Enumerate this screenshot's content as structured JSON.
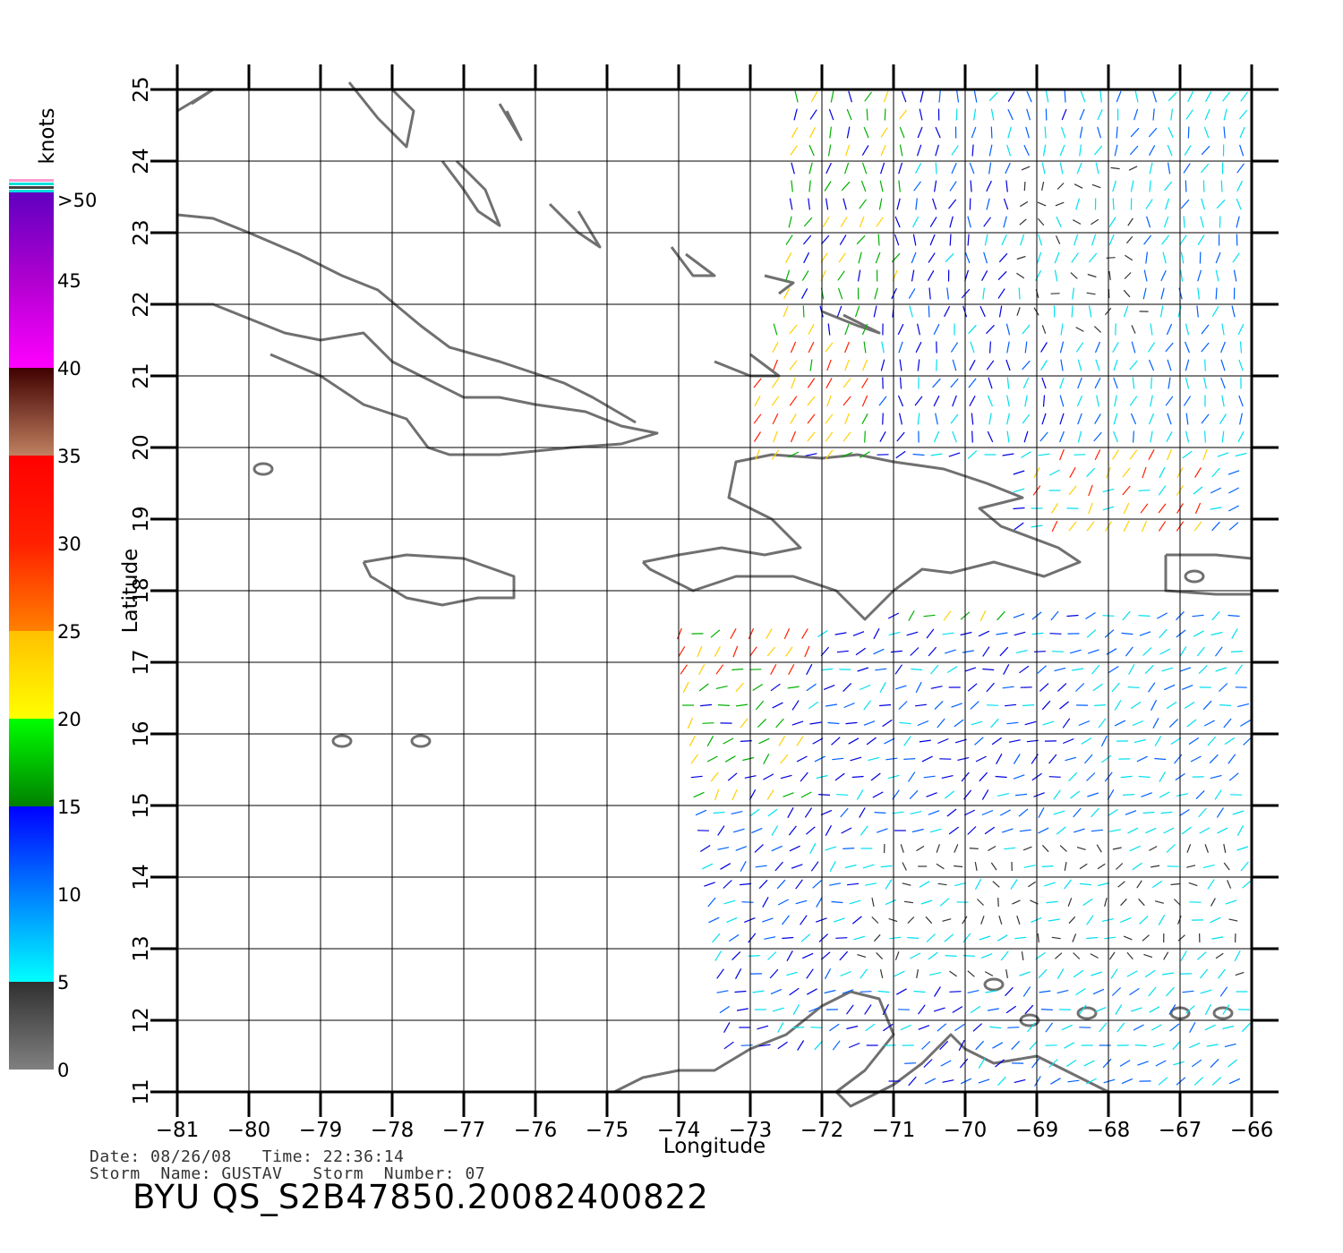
{
  "axes": {
    "xlabel": "Longitude",
    "ylabel": "Latitude",
    "lon_ticks": [
      "−81",
      "−80",
      "−79",
      "−78",
      "−77",
      "−76",
      "−75",
      "−74",
      "−73",
      "−72",
      "−71",
      "−70",
      "−69",
      "−68",
      "−67",
      "−66"
    ],
    "lat_ticks": [
      "11",
      "12",
      "13",
      "14",
      "15",
      "16",
      "17",
      "18",
      "19",
      "20",
      "21",
      "22",
      "23",
      "24",
      "25"
    ],
    "lon_range": [
      -81,
      -66
    ],
    "lat_range": [
      11,
      25
    ]
  },
  "colorbar": {
    "unit_label": "knots",
    "labels": [
      ">50",
      "45",
      "40",
      "35",
      "30",
      "25",
      "20",
      "15",
      "10",
      "5",
      "0"
    ],
    "bands": [
      {
        "from": 0,
        "to": 5,
        "colors": [
          "#808080",
          "#303030"
        ]
      },
      {
        "from": 5,
        "to": 10,
        "colors": [
          "#00ffff",
          "#0080ff"
        ]
      },
      {
        "from": 10,
        "to": 15,
        "colors": [
          "#0080ff",
          "#0000ff"
        ]
      },
      {
        "from": 15,
        "to": 20,
        "colors": [
          "#008000",
          "#00ff00"
        ]
      },
      {
        "from": 20,
        "to": 25,
        "colors": [
          "#ffff00",
          "#ffc000"
        ]
      },
      {
        "from": 25,
        "to": 30,
        "colors": [
          "#ff8000",
          "#ff2000"
        ]
      },
      {
        "from": 30,
        "to": 35,
        "colors": [
          "#ff2000",
          "#ff0000"
        ]
      },
      {
        "from": 35,
        "to": 40,
        "colors": [
          "#c08060",
          "#400000"
        ]
      },
      {
        "from": 40,
        "to": 45,
        "colors": [
          "#ff00ff",
          "#b000d0"
        ]
      },
      {
        "from": 45,
        "to": 50,
        "colors": [
          "#b000d0",
          "#6000c0"
        ]
      }
    ]
  },
  "wind_colors": {
    "calm": "#333333",
    "light": "#00e0f0",
    "moderate": "#0060ff",
    "fresh": "#0000e0",
    "strong": "#00b000",
    "near_gale": "#ffd000",
    "gale": "#ff2000",
    "coastline": "#707070"
  },
  "info": {
    "date_line": "Date: 08/26/08   Time: 22:36:14",
    "storm_line": "Storm  Name: GUSTAV   Storm  Number: 07"
  },
  "title": "BYU  QS_S2B47850.20082400822"
}
